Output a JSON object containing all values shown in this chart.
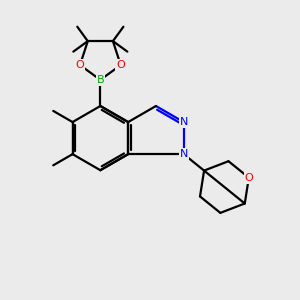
{
  "bg_color": "#ebebeb",
  "bond_color": "#000000",
  "N_color": "#0000ff",
  "O_color": "#ff0000",
  "B_color": "#00aa00",
  "line_width": 1.6,
  "figsize": [
    3.0,
    3.0
  ],
  "dpi": 100,
  "xlim": [
    0,
    10
  ],
  "ylim": [
    0,
    10
  ]
}
